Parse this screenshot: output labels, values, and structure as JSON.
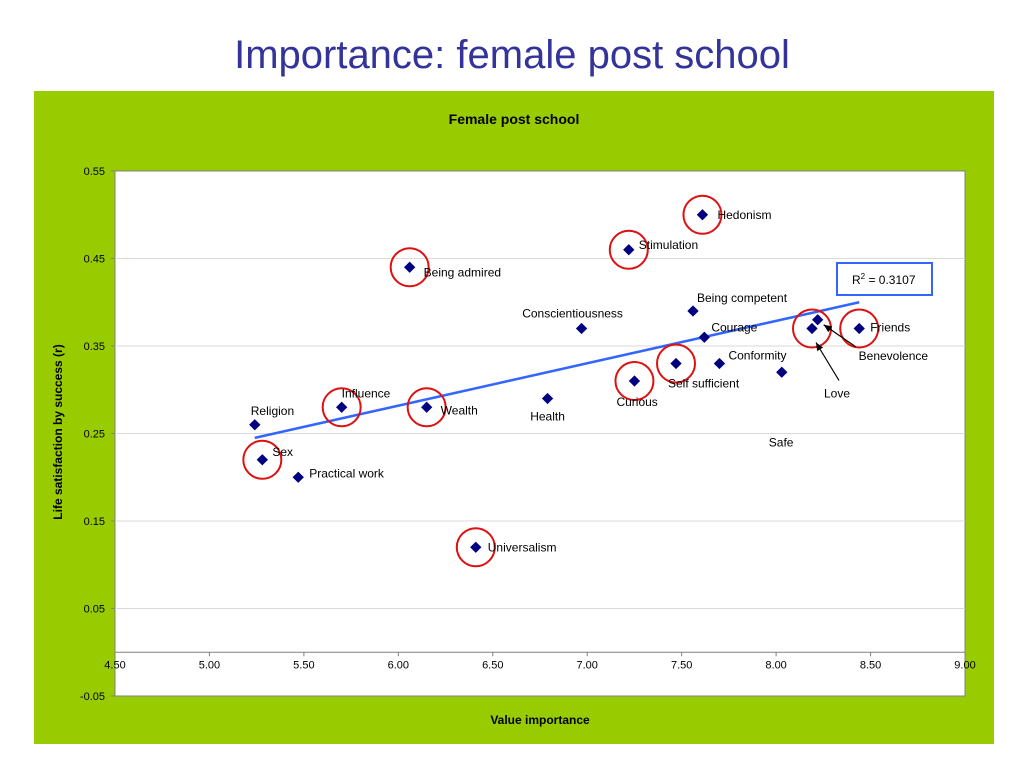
{
  "slide": {
    "title": "Importance: female post school"
  },
  "colors": {
    "panel": "#99cc00",
    "title": "#333399",
    "marker": "#000080",
    "trend": "#3366ff",
    "highlight": "#dd1111"
  },
  "chart_data": {
    "type": "scatter",
    "title": "Female post school",
    "xlabel": "Value importance",
    "ylabel": "Life satisfaction by success (r)",
    "xlim": [
      4.5,
      9.0
    ],
    "ylim": [
      -0.05,
      0.55
    ],
    "xticks": [
      "4.50",
      "5.00",
      "5.50",
      "6.00",
      "6.50",
      "7.00",
      "7.50",
      "8.00",
      "8.50",
      "9.00"
    ],
    "yticks": [
      "0.55",
      "0.45",
      "0.35",
      "0.25",
      "0.15",
      "0.05",
      "-0.05"
    ],
    "grid": "horizontal",
    "annotation": {
      "r2_label": "R",
      "r2_sup": "2",
      "r2_value": " = 0.3107"
    },
    "trendline": {
      "x": [
        5.24,
        8.44
      ],
      "y": [
        0.245,
        0.4
      ]
    },
    "points": [
      {
        "label": "Hedonism",
        "x": 7.61,
        "y": 0.5,
        "circled": true
      },
      {
        "label": "Stimulation",
        "x": 7.22,
        "y": 0.46,
        "circled": true
      },
      {
        "label": "Being admired",
        "x": 6.06,
        "y": 0.44,
        "circled": true
      },
      {
        "label": "Being competent",
        "x": 7.56,
        "y": 0.39,
        "circled": false
      },
      {
        "label": "Conscientiousness",
        "x": 6.97,
        "y": 0.37,
        "circled": false
      },
      {
        "label": "Courage",
        "x": 7.62,
        "y": 0.36,
        "circled": false
      },
      {
        "label": "Conformity",
        "x": 7.7,
        "y": 0.33,
        "circled": false
      },
      {
        "label": "Friends",
        "x": 8.44,
        "y": 0.37,
        "circled": true
      },
      {
        "label": "Benevolence",
        "x": 8.22,
        "y": 0.38,
        "circled": false
      },
      {
        "label": "Love",
        "x": 8.19,
        "y": 0.37,
        "circled": true
      },
      {
        "label": "Safe",
        "x": 8.03,
        "y": 0.32,
        "circled": false
      },
      {
        "label": "Self sufficient",
        "x": 7.47,
        "y": 0.33,
        "circled": true
      },
      {
        "label": "Curious",
        "x": 7.25,
        "y": 0.31,
        "circled": true
      },
      {
        "label": "Health",
        "x": 6.79,
        "y": 0.29,
        "circled": false
      },
      {
        "label": "Influence",
        "x": 5.7,
        "y": 0.28,
        "circled": true
      },
      {
        "label": "Wealth",
        "x": 6.15,
        "y": 0.28,
        "circled": true
      },
      {
        "label": "Religion",
        "x": 5.24,
        "y": 0.26,
        "circled": false
      },
      {
        "label": "Sex",
        "x": 5.28,
        "y": 0.22,
        "circled": true
      },
      {
        "label": "Practical work",
        "x": 5.47,
        "y": 0.2,
        "circled": false
      },
      {
        "label": "Universalism",
        "x": 6.41,
        "y": 0.12,
        "circled": true
      }
    ]
  }
}
